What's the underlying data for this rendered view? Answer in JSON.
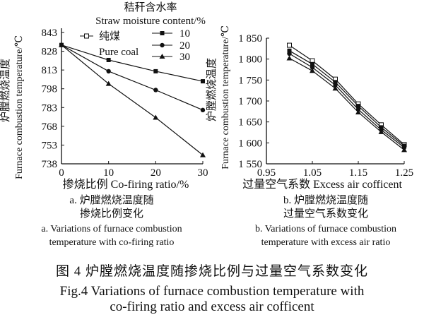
{
  "colors": {
    "ink": "#111111",
    "background": "#ffffff"
  },
  "figure": {
    "caption_cn": "图 4   炉膛燃烧温度随掺烧比例与过量空气系数变化",
    "caption_en_line1": "Fig.4   Variations of furnace combustion temperature with",
    "caption_en_line2": "co-firing ratio and excess air cofficent"
  },
  "panel_a": {
    "label_cn_1": "a. 炉膛燃烧温度随",
    "label_cn_2": "掺烧比例变化",
    "label_en_1": "a. Variations of furnace combustion",
    "label_en_2": "temperature with co-firing ratio",
    "legend_title_cn": "秸秆含水率",
    "legend_title_en": "Straw moisture content/%",
    "legend_pure_cn": "纯煤",
    "legend_pure_en": "Pure coal"
  },
  "panel_b": {
    "label_cn_1": "b. 炉膛燃烧温度随",
    "label_cn_2": "过量空气系数变化",
    "label_en_1": "b. Variations of furnace combustion",
    "label_en_2": "temperature with excess air ratio"
  },
  "chart_data": [
    {
      "type": "line",
      "ylabel_cn": "炉膛燃烧温度",
      "ylabel_en": "Furnace combustion temperature/℃",
      "xlabel": "掺烧比例 Co-firing ratio/%",
      "x": [
        0,
        10,
        20,
        30
      ],
      "xticks": [
        "0",
        "10",
        "20",
        "30"
      ],
      "xlim": [
        0,
        30
      ],
      "ylim": [
        738,
        843
      ],
      "yticks": [
        "843",
        "828",
        "813",
        "798",
        "783",
        "768",
        "753",
        "738"
      ],
      "ytick_values": [
        843,
        828,
        813,
        798,
        783,
        768,
        753,
        738
      ],
      "grid": false,
      "legend_position": "top-right",
      "series": [
        {
          "name": "10",
          "marker": "square",
          "values": [
            833,
            821,
            812,
            804
          ]
        },
        {
          "name": "20",
          "marker": "circle",
          "values": [
            833,
            812,
            797,
            781
          ]
        },
        {
          "name": "30",
          "marker": "triangle",
          "values": [
            833,
            802,
            775,
            745
          ]
        }
      ]
    },
    {
      "type": "line",
      "ylabel_cn": "炉膛燃烧温度",
      "ylabel_en": "Furnace combustion temperature/℃",
      "xlabel": "过量空气系数 Excess air cofficent",
      "x": [
        1.0,
        1.05,
        1.1,
        1.15,
        1.2,
        1.25
      ],
      "xticks": [
        "0.95",
        "1.05",
        "1.15",
        "1.25"
      ],
      "xtick_values": [
        0.95,
        1.05,
        1.15,
        1.25
      ],
      "xlim": [
        0.95,
        1.25
      ],
      "ylim": [
        1550,
        1850
      ],
      "yticks": [
        "1 850",
        "1 800",
        "1 750",
        "1 700",
        "1 650",
        "1 600",
        "1 550"
      ],
      "ytick_values": [
        1850,
        1800,
        1750,
        1700,
        1650,
        1600,
        1550
      ],
      "grid": false,
      "series": [
        {
          "name": "纯煤",
          "marker": "open-square",
          "values": [
            1833,
            1796,
            1752,
            1693,
            1643,
            1596
          ]
        },
        {
          "name": "10",
          "marker": "square",
          "values": [
            1820,
            1788,
            1745,
            1688,
            1637,
            1593
          ]
        },
        {
          "name": "20",
          "marker": "circle",
          "values": [
            1813,
            1780,
            1738,
            1680,
            1631,
            1589
          ]
        },
        {
          "name": "30",
          "marker": "triangle",
          "values": [
            1802,
            1772,
            1730,
            1673,
            1626,
            1583
          ]
        }
      ]
    }
  ]
}
